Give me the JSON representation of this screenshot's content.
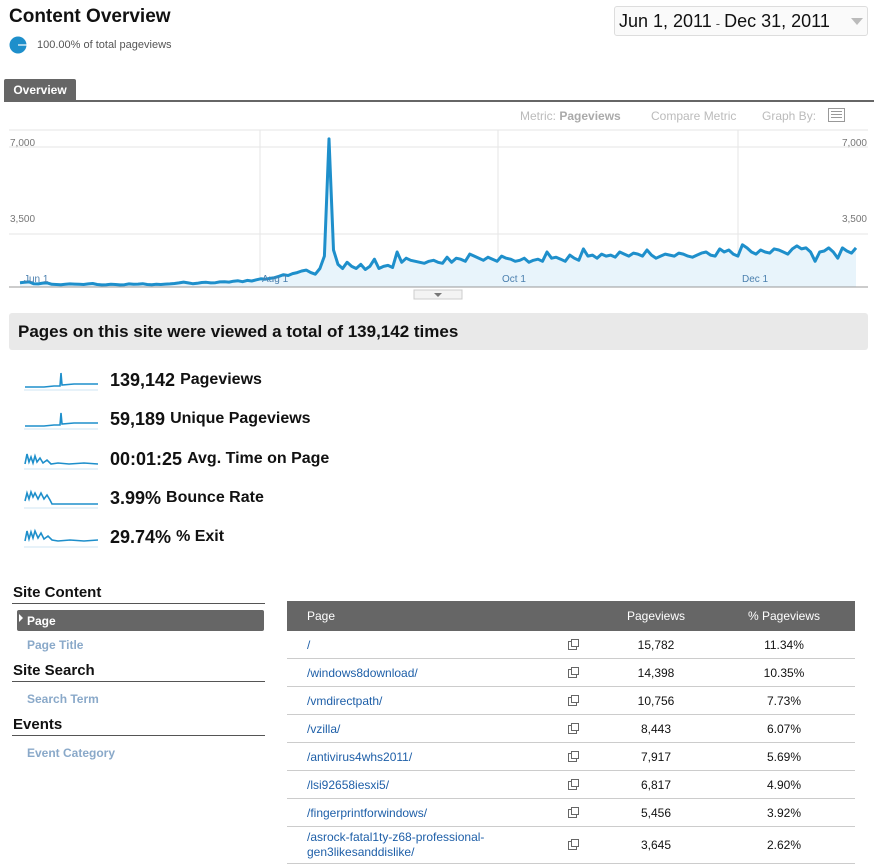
{
  "header": {
    "title": "Content Overview",
    "subtitle": "100.00% of total pageviews",
    "date_start": "Jun 1, 2011",
    "date_sep": "-",
    "date_end": "Dec 31, 2011"
  },
  "tabs": [
    {
      "label": "Overview"
    }
  ],
  "controls": {
    "metric_prefix": "Metric:",
    "metric_value": "Pageviews",
    "compare": "Compare Metric",
    "graph_by": "Graph By:"
  },
  "chart_data": {
    "type": "area",
    "x_labels": [
      "Jun 1",
      "Aug 1",
      "Oct 1",
      "Dec 1"
    ],
    "y_ticks": [
      "7,000",
      "3,500"
    ],
    "ylim": [
      0,
      7000
    ],
    "color": "#1e8fcb",
    "grid": true,
    "values": [
      210,
      230,
      250,
      160,
      150,
      190,
      200,
      130,
      120,
      110,
      130,
      150,
      140,
      130,
      120,
      150,
      170,
      120,
      100,
      110,
      130,
      120,
      100,
      110,
      150,
      130,
      140,
      160,
      120,
      110,
      130,
      120,
      140,
      150,
      170,
      200,
      240,
      200,
      160,
      180,
      220,
      230,
      200,
      210,
      250,
      260,
      240,
      280,
      300,
      260,
      320,
      290,
      350,
      400,
      380,
      420,
      450,
      520,
      600,
      560,
      650,
      700,
      780,
      820,
      700,
      620,
      900,
      1500,
      7200,
      1800,
      1100,
      900,
      1200,
      1000,
      900,
      1100,
      850,
      1000,
      1350,
      900,
      1000,
      1050,
      950,
      1700,
      1200,
      1400,
      1300,
      1250,
      1200,
      1150,
      1250,
      1300,
      1200,
      1150,
      1450,
      1200,
      1400,
      1350,
      1250,
      1600,
      1500,
      1400,
      1300,
      1450,
      1350,
      1250,
      1500,
      1400,
      1350,
      1250,
      1300,
      1400,
      1200,
      1300,
      1350,
      1250,
      1700,
      1400,
      1450,
      1350,
      1250,
      1550,
      1400,
      1300,
      1850,
      1500,
      1550,
      1400,
      1600,
      1500,
      1550,
      1450,
      1700,
      1600,
      1500,
      1650,
      1600,
      1500,
      1800,
      1550,
      1400,
      1500,
      1600,
      1550,
      1500,
      1650,
      1600,
      1500,
      1450,
      1550,
      1650,
      1700,
      1550,
      1500,
      1850,
      1700,
      1800,
      1600,
      1500,
      2050,
      1900,
      1700,
      1600,
      1800,
      1700,
      1650,
      1850,
      1800,
      1700,
      1600,
      1850,
      2000,
      1850,
      1900,
      1700,
      1250,
      1700,
      1750,
      1900,
      1700,
      1400,
      1900,
      1750,
      1650,
      1900
    ]
  },
  "summary": {
    "banner": "Pages on this site were viewed a total of 139,142 times"
  },
  "metrics": [
    {
      "value": "139,142",
      "label": "Pageviews"
    },
    {
      "value": "59,189",
      "label": "Unique Pageviews"
    },
    {
      "value": "00:01:25",
      "label": "Avg. Time on Page"
    },
    {
      "value": "3.99%",
      "label": "Bounce Rate"
    },
    {
      "value": "29.74%",
      "label": "% Exit"
    }
  ],
  "sidebar": {
    "sections": [
      {
        "title": "Site Content",
        "items": [
          "Page",
          "Page Title"
        ]
      },
      {
        "title": "Site Search",
        "items": [
          "Search Term"
        ]
      },
      {
        "title": "Events",
        "items": [
          "Event Category"
        ]
      }
    ]
  },
  "table": {
    "headers": [
      "Page",
      "Pageviews",
      "% Pageviews"
    ],
    "rows": [
      {
        "page": "/",
        "pageviews": "15,782",
        "pct": "11.34%"
      },
      {
        "page": "/windows8download/",
        "pageviews": "14,398",
        "pct": "10.35%"
      },
      {
        "page": "/vmdirectpath/",
        "pageviews": "10,756",
        "pct": "7.73%"
      },
      {
        "page": "/vzilla/",
        "pageviews": "8,443",
        "pct": "6.07%"
      },
      {
        "page": "/antivirus4whs2011/",
        "pageviews": "7,917",
        "pct": "5.69%"
      },
      {
        "page": "/lsi92658iesxi5/",
        "pageviews": "6,817",
        "pct": "4.90%"
      },
      {
        "page": "/fingerprintforwindows/",
        "pageviews": "5,456",
        "pct": "3.92%"
      },
      {
        "page_line1": "/asrock-fatal1ty-z68-professional-",
        "page_line2": "gen3likesanddislike/",
        "pageviews": "3,645",
        "pct": "2.62%"
      }
    ]
  }
}
